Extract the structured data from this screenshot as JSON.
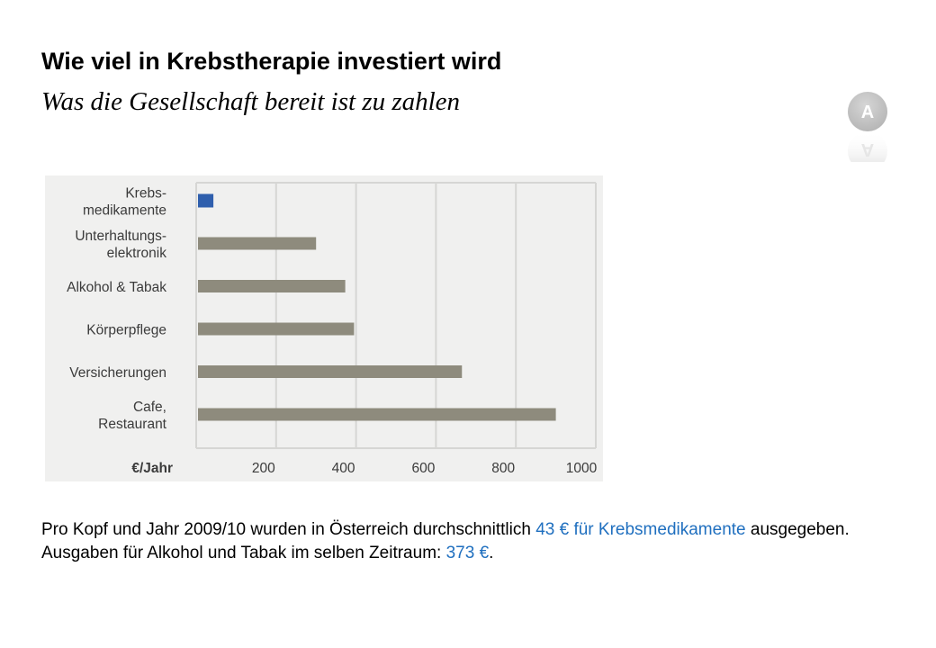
{
  "header": {
    "title": "Wie viel in Krebstherapie investiert wird",
    "subtitle": "Was die Gesellschaft bereit ist zu zahlen"
  },
  "logo": {
    "icon": "a-badge-logo-icon",
    "letter": "A",
    "color": "#e8e8e8"
  },
  "chart_data": {
    "type": "bar",
    "orientation": "horizontal",
    "categories": [
      [
        "Krebs-",
        "medikamente"
      ],
      [
        "Unterhaltungs-",
        "elektronik"
      ],
      [
        "Alkohol & Tabak"
      ],
      [
        "Körperpflege"
      ],
      [
        "Versicherungen"
      ],
      [
        "Cafe,",
        "Restaurant"
      ]
    ],
    "values": [
      43,
      300,
      373,
      395,
      665,
      900
    ],
    "colors": [
      "#2f5fad",
      "#8e8b7d",
      "#8e8b7d",
      "#8e8b7d",
      "#8e8b7d",
      "#8e8b7d"
    ],
    "x_unit_label": "€/Jahr",
    "x_ticks": [
      200,
      400,
      600,
      800,
      1000
    ],
    "xlim": [
      0,
      1000
    ],
    "grid": true,
    "background": "#f0f0ef",
    "grid_color": "#d6d6d4"
  },
  "caption": {
    "line1_part1": "Pro Kopf und Jahr 2009/10 wurden in Österreich durchschnittlich ",
    "line1_highlight": "43 € für Krebsmedikamente",
    "line1_part2": " ausgegeben.",
    "line2_part1": "Ausgaben für Alkohol und Tabak im selben Zeitraum: ",
    "line2_highlight": "373 €",
    "line2_part2": ".",
    "highlight_color": "#1f6fbf"
  }
}
